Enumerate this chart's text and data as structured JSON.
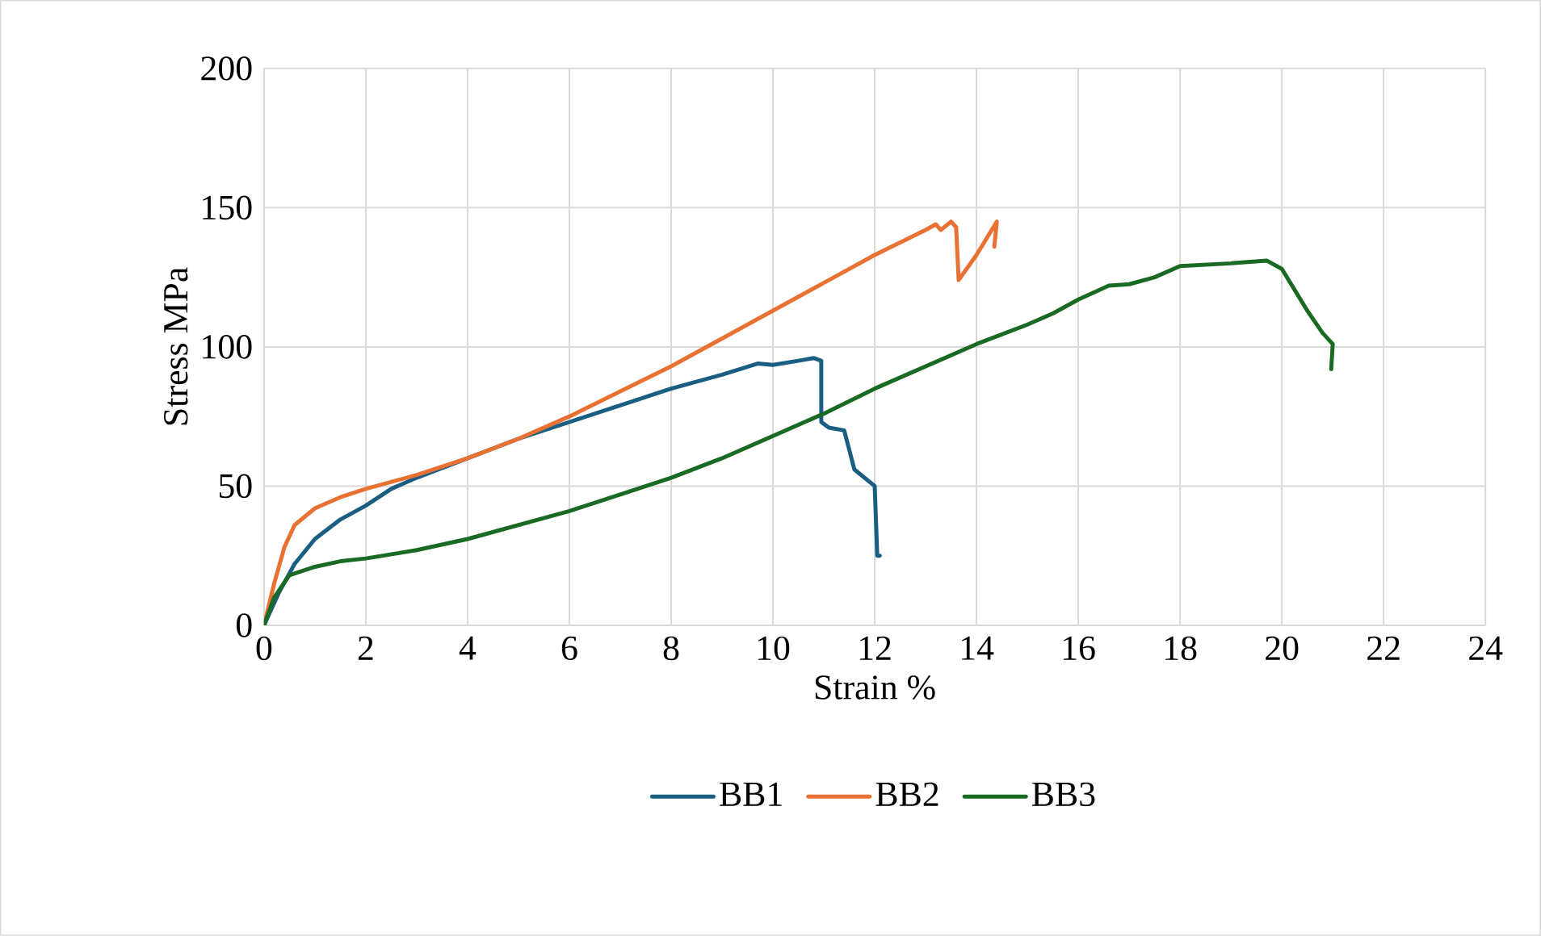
{
  "chart_data": {
    "type": "line",
    "xlabel": "Strain %",
    "ylabel": "Stress MPa",
    "xlim": [
      0,
      24
    ],
    "xticks": [
      0,
      2,
      4,
      6,
      8,
      10,
      12,
      14,
      16,
      18,
      20,
      22,
      24
    ],
    "ylim": [
      0,
      200
    ],
    "yticks": [
      0,
      50,
      100,
      150,
      200
    ],
    "grid": true,
    "legend": "bottom",
    "marker": "none",
    "line_style": "solid",
    "series": [
      {
        "name": "BB1",
        "color": "#1b5e84",
        "x": [
          0,
          0.3,
          0.6,
          1,
          1.5,
          2,
          2.5,
          3,
          4,
          5,
          6,
          7,
          8,
          9,
          9.7,
          10,
          10.5,
          10.8,
          10.95,
          10.95,
          11.1,
          11.4,
          11.6,
          12,
          12.05,
          12.1
        ],
        "values": [
          0,
          12,
          22,
          31,
          38,
          43,
          49,
          53,
          60,
          67,
          73,
          79,
          85,
          90,
          94,
          93.5,
          95,
          96,
          95,
          73,
          71,
          70,
          56,
          50,
          25,
          25
        ]
      },
      {
        "name": "BB2",
        "color": "#e97132",
        "x": [
          0,
          0.2,
          0.4,
          0.6,
          1,
          1.5,
          2,
          3,
          4,
          5,
          6,
          7,
          8,
          9,
          10,
          11,
          12,
          13,
          13.2,
          13.3,
          13.5,
          13.6,
          13.65,
          14,
          14.4,
          14.35
        ],
        "values": [
          0,
          15,
          28,
          36,
          42,
          46,
          49,
          54,
          60,
          67,
          75,
          84,
          93,
          103,
          113,
          123,
          133,
          142,
          144,
          142,
          145,
          143,
          124,
          133,
          145,
          136
        ]
      },
      {
        "name": "BB3",
        "color": "#196b24",
        "x": [
          0,
          0.2,
          0.5,
          1,
          1.5,
          2,
          3,
          4,
          5,
          6,
          7,
          8,
          9,
          10,
          11,
          12,
          13,
          14,
          15,
          15.5,
          16,
          16.6,
          17,
          17.5,
          18,
          19,
          19.7,
          20,
          20.5,
          20.8,
          21,
          20.97
        ],
        "values": [
          0,
          10,
          18,
          21,
          23,
          24,
          27,
          31,
          36,
          41,
          47,
          53,
          60,
          68,
          76,
          85,
          93,
          101,
          108,
          112,
          117,
          122,
          122.5,
          125,
          129,
          130,
          131,
          128,
          113,
          105,
          101,
          92
        ]
      }
    ]
  }
}
